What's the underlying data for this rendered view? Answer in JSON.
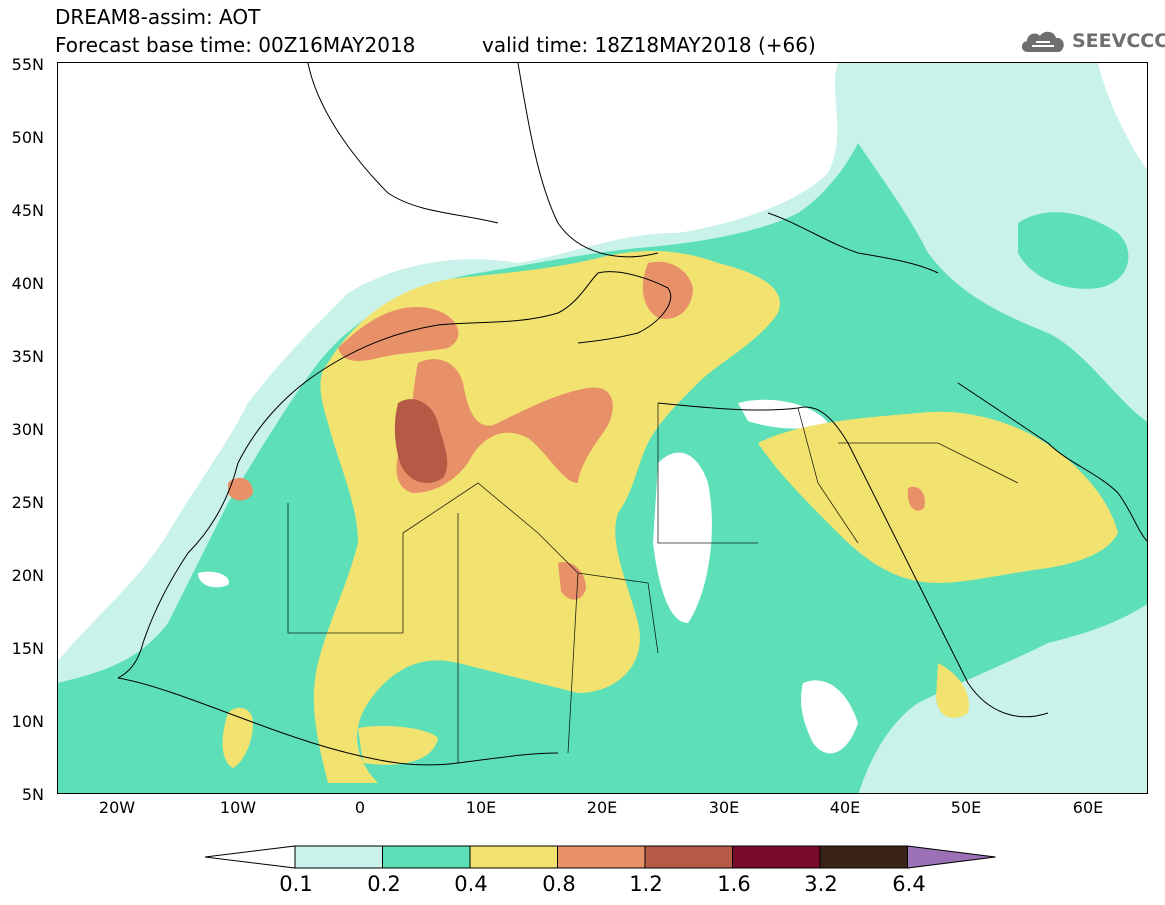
{
  "title": {
    "line1": "DREAM8-assim: AOT",
    "line2": "Forecast base time: 00Z16MAY2018",
    "valid": "valid time: 18Z18MAY2018 (+66)"
  },
  "logo": {
    "text": "SEEVCCC",
    "icon": "cloud-icon"
  },
  "axes": {
    "lat_labels": [
      "55N",
      "50N",
      "45N",
      "40N",
      "35N",
      "30N",
      "25N",
      "20N",
      "15N",
      "10N",
      "5N"
    ],
    "lon_labels": [
      "20W",
      "10W",
      "0",
      "10E",
      "20E",
      "30E",
      "40E",
      "50E",
      "60E"
    ],
    "lat_range": [
      5,
      55
    ],
    "lon_range": [
      -25,
      65
    ]
  },
  "colorbar": {
    "levels": [
      "0.1",
      "0.2",
      "0.4",
      "0.8",
      "1.2",
      "1.6",
      "3.2",
      "6.4"
    ],
    "colors": [
      "#ffffff",
      "#c8f2ea",
      "#5ddfb8",
      "#f2e370",
      "#e89068",
      "#b55a44",
      "#7a0a2a",
      "#3a2418",
      "#9c70b5"
    ]
  },
  "field_colors": {
    "c01": "#c8f2ea",
    "c02": "#5ddfb8",
    "c04": "#f2e370",
    "c08": "#e89068",
    "c12": "#b55a44"
  }
}
